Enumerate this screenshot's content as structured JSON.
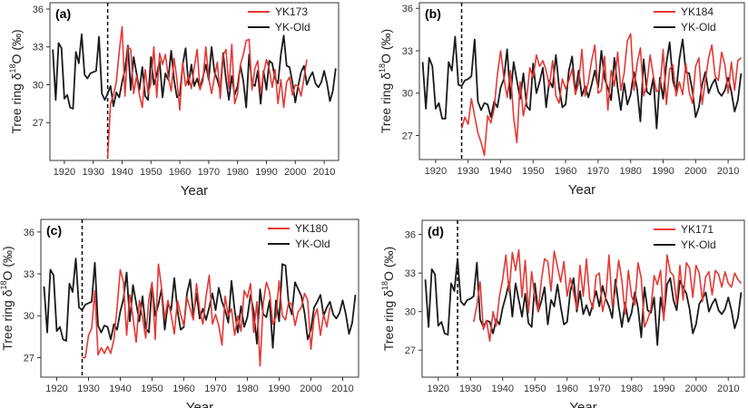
{
  "colors": {
    "red": "#e53935",
    "black": "#1a1a1a",
    "frame": "#333333",
    "ref_line": "#000000"
  },
  "chart_data": [
    {
      "type": "line",
      "panel_label": "(a)",
      "xlabel": "Year",
      "ylabel_main": "Tree ring δ",
      "ylabel_sup": "18",
      "ylabel_tail": "O (‰)",
      "xlim": [
        1915,
        2015
      ],
      "ylim": [
        24,
        36.5
      ],
      "xticks": [
        1920,
        1930,
        1940,
        1950,
        1960,
        1970,
        1980,
        1990,
        2000,
        2010
      ],
      "yticks": [
        27,
        30,
        33,
        36
      ],
      "ref_year": 1935,
      "legend": {
        "position": "top-right"
      },
      "series": [
        {
          "name": "YK173",
          "color": "#e53935",
          "x_start": 1935,
          "values": [
            24.2,
            28.5,
            29.2,
            30.2,
            32.6,
            34.6,
            29.1,
            33.0,
            32.8,
            29.3,
            30.7,
            29.2,
            28.2,
            31.2,
            29.3,
            30.1,
            33.0,
            29.0,
            32.5,
            31.6,
            32.4,
            30.6,
            29.5,
            32.1,
            30.4,
            28.0,
            31.8,
            29.9,
            30.7,
            29.7,
            31.4,
            32.8,
            29.6,
            30.3,
            33.0,
            30.5,
            29.3,
            30.6,
            31.8,
            28.9,
            32.3,
            32.8,
            29.7,
            33.2,
            28.5,
            29.3,
            31.6,
            32.4,
            33.5,
            33.6,
            29.6,
            31.3,
            31.9,
            29.3,
            30.9,
            32.0,
            31.2,
            29.8,
            31.2,
            28.5,
            30.4,
            28.2,
            30.2,
            30.6,
            29.2,
            30.0,
            29.9,
            29.1,
            30.5,
            32.0
          ]
        },
        {
          "name": "YK-Old",
          "color": "#1a1a1a",
          "x_start": 1916,
          "values": [
            32.8,
            28.8,
            33.3,
            32.9,
            28.9,
            29.2,
            28.2,
            28.1,
            32.6,
            31.7,
            34.0,
            30.8,
            30.5,
            30.9,
            31.0,
            31.1,
            33.8,
            29.3,
            28.8,
            29.3,
            29.9,
            28.3,
            29.4,
            29.0,
            30.2,
            31.2,
            33.1,
            29.6,
            32.2,
            30.9,
            29.6,
            31.4,
            29.1,
            28.8,
            32.2,
            30.0,
            30.8,
            31.9,
            29.0,
            30.9,
            30.4,
            32.7,
            30.4,
            29.0,
            29.2,
            31.6,
            32.9,
            30.0,
            31.6,
            29.9,
            30.5,
            29.7,
            30.6,
            31.6,
            30.4,
            33.0,
            31.0,
            30.4,
            29.5,
            32.5,
            30.4,
            28.8,
            30.7,
            29.2,
            29.9,
            31.5,
            30.3,
            28.2,
            32.4,
            30.1,
            29.9,
            31.1,
            28.5,
            31.1,
            29.6,
            31.9,
            31.7,
            30.5,
            30.1,
            32.4,
            33.9,
            31.5,
            31.4,
            30.2,
            28.6,
            29.9,
            31.0,
            31.5,
            30.0,
            30.6,
            31.0,
            30.1,
            29.8,
            30.2,
            31.1,
            30.1,
            28.7,
            29.5,
            31.3
          ]
        }
      ]
    },
    {
      "type": "line",
      "panel_label": "(b)",
      "xlabel": "Year",
      "ylabel_main": "Tree ring δ",
      "ylabel_sup": "18",
      "ylabel_tail": "O (‰)",
      "xlim": [
        1915,
        2015
      ],
      "ylim": [
        25.3,
        36.4
      ],
      "xticks": [
        1920,
        1930,
        1940,
        1950,
        1960,
        1970,
        1980,
        1990,
        2000,
        2010
      ],
      "yticks": [
        27,
        30,
        33,
        36
      ],
      "ref_year": 1928,
      "legend": {
        "position": "top-right"
      },
      "series": [
        {
          "name": "YK184",
          "color": "#e53935",
          "x_start": 1928,
          "values": [
            27.5,
            28.3,
            27.8,
            29.6,
            28.4,
            27.2,
            26.5,
            25.6,
            28.4,
            27.9,
            28.9,
            31.3,
            33.0,
            31.1,
            29.7,
            31.6,
            28.3,
            26.5,
            30.8,
            28.4,
            29.6,
            31.8,
            31.1,
            32.7,
            31.9,
            32.3,
            31.6,
            30.5,
            32.3,
            29.8,
            29.3,
            31.0,
            30.3,
            30.9,
            31.7,
            29.9,
            30.7,
            33.1,
            29.8,
            30.8,
            32.3,
            33.4,
            30.0,
            30.2,
            32.6,
            28.8,
            31.6,
            30.5,
            32.9,
            30.2,
            31.4,
            33.7,
            34.2,
            30.2,
            32.1,
            33.2,
            29.8,
            30.6,
            32.7,
            31.2,
            30.1,
            30.3,
            33.1,
            29.2,
            31.7,
            32.0,
            29.8,
            30.8,
            29.9,
            32.1,
            30.1,
            29.3,
            31.9,
            32.5,
            29.2,
            30.9,
            32.5,
            33.4,
            31.2,
            30.9,
            32.9,
            32.0,
            30.0,
            32.2,
            30.2,
            32.3,
            32.5
          ]
        },
        {
          "name": "YK-Old",
          "color": "#1a1a1a",
          "x_start": 1916,
          "values": [
            32.2,
            28.9,
            32.5,
            31.9,
            28.9,
            29.3,
            28.2,
            28.2,
            32.2,
            31.6,
            34.0,
            30.6,
            30.5,
            30.9,
            31.0,
            31.2,
            33.8,
            29.4,
            28.8,
            29.3,
            29.2,
            28.3,
            29.4,
            29.0,
            30.4,
            31.0,
            33.1,
            29.6,
            32.2,
            30.9,
            29.6,
            31.4,
            29.1,
            28.8,
            32.1,
            30.0,
            30.8,
            31.8,
            29.0,
            30.9,
            30.4,
            32.7,
            30.4,
            29.0,
            29.2,
            31.6,
            32.6,
            30.0,
            31.6,
            29.8,
            30.5,
            29.7,
            30.6,
            31.6,
            30.4,
            33.0,
            31.0,
            30.4,
            29.5,
            32.5,
            30.4,
            28.8,
            30.7,
            29.2,
            29.9,
            31.5,
            30.3,
            28.0,
            32.4,
            30.1,
            29.9,
            31.1,
            27.5,
            31.1,
            29.6,
            32.1,
            33.6,
            30.9,
            30.1,
            32.4,
            33.8,
            31.5,
            31.4,
            30.2,
            28.3,
            29.0,
            30.6,
            31.5,
            30.0,
            30.6,
            31.0,
            30.1,
            29.8,
            30.2,
            31.1,
            30.1,
            28.7,
            29.5,
            31.4
          ]
        }
      ]
    },
    {
      "type": "line",
      "panel_label": "(c)",
      "xlabel": "Year",
      "ylabel_main": "Tree ring δ",
      "ylabel_sup": "18",
      "ylabel_tail": "O (‰)",
      "xlim": [
        1915,
        2015
      ],
      "ylim": [
        25.6,
        36.9
      ],
      "xticks": [
        1920,
        1930,
        1940,
        1950,
        1960,
        1970,
        1980,
        1990,
        2000,
        2010
      ],
      "yticks": [
        27,
        30,
        33,
        36
      ],
      "ref_year": 1928,
      "legend": {
        "position": "top-right"
      },
      "series": [
        {
          "name": "YK180",
          "color": "#e53935",
          "x_start": 1928,
          "values": [
            27.0,
            27.0,
            28.6,
            29.1,
            31.8,
            27.2,
            27.7,
            27.3,
            27.8,
            27.3,
            28.3,
            30.6,
            33.3,
            32.4,
            28.6,
            31.5,
            29.9,
            28.1,
            31.1,
            29.9,
            28.4,
            31.2,
            32.4,
            28.3,
            33.7,
            32.0,
            29.8,
            31.1,
            30.1,
            28.7,
            31.1,
            30.1,
            29.3,
            31.3,
            30.5,
            29.7,
            32.3,
            30.4,
            29.4,
            31.4,
            32.9,
            29.4,
            30.1,
            29.3,
            27.9,
            31.4,
            30.0,
            30.5,
            28.6,
            30.0,
            28.9,
            31.8,
            31.3,
            32.3,
            28.8,
            31.0,
            26.4,
            30.9,
            32.4,
            31.7,
            29.4,
            29.9,
            32.5,
            30.0,
            29.7,
            31.0,
            30.8,
            29.3,
            30.3,
            30.6,
            31.6,
            31.1,
            27.6,
            29.9,
            30.5,
            28.6,
            30.1,
            29.2,
            30.6
          ]
        },
        {
          "name": "YK-Old",
          "color": "#1a1a1a",
          "x_start": 1916,
          "values": [
            32.1,
            28.8,
            33.3,
            32.9,
            28.9,
            29.2,
            28.3,
            28.2,
            32.3,
            31.7,
            34.1,
            30.6,
            30.4,
            30.8,
            30.9,
            31.0,
            33.8,
            29.3,
            28.8,
            29.3,
            29.2,
            28.3,
            29.4,
            29.0,
            30.3,
            31.2,
            33.1,
            29.6,
            32.2,
            30.9,
            29.6,
            31.4,
            29.1,
            28.8,
            32.2,
            30.0,
            30.8,
            31.9,
            29.0,
            30.9,
            30.4,
            32.7,
            30.4,
            29.0,
            29.2,
            31.6,
            32.6,
            30.0,
            31.6,
            29.8,
            30.5,
            29.7,
            30.6,
            31.6,
            30.4,
            32.0,
            31.0,
            30.4,
            29.5,
            32.5,
            30.4,
            28.8,
            30.7,
            29.2,
            29.9,
            31.5,
            30.3,
            28.0,
            31.9,
            30.1,
            29.9,
            31.1,
            27.7,
            31.1,
            29.6,
            33.7,
            33.6,
            30.9,
            30.1,
            32.4,
            31.9,
            31.4,
            30.2,
            28.3,
            29.0,
            30.6,
            31.0,
            31.5,
            30.0,
            30.6,
            31.0,
            30.1,
            29.8,
            30.2,
            31.1,
            30.1,
            28.7,
            29.5,
            31.5
          ]
        }
      ]
    },
    {
      "type": "line",
      "panel_label": "(d)",
      "xlabel": "Year",
      "ylabel_main": "Tree ring δ",
      "ylabel_sup": "18",
      "ylabel_tail": "O (‰)",
      "xlim": [
        1915,
        2015
      ],
      "ylim": [
        24.9,
        37.1
      ],
      "xticks": [
        1920,
        1930,
        1940,
        1950,
        1960,
        1970,
        1980,
        1990,
        2000,
        2010
      ],
      "yticks": [
        27,
        30,
        33,
        36
      ],
      "ref_year": 1926,
      "legend": {
        "position": "top-right"
      },
      "series": [
        {
          "name": "YK171",
          "color": "#e53935",
          "x_start": 1931,
          "values": [
            29.2,
            30.5,
            32.3,
            28.6,
            29.3,
            27.7,
            30.0,
            28.9,
            31.2,
            32.5,
            34.4,
            31.5,
            34.6,
            33.2,
            34.8,
            31.1,
            34.0,
            29.9,
            33.1,
            31.1,
            30.0,
            32.4,
            34.1,
            33.9,
            31.6,
            34.7,
            33.5,
            32.3,
            33.9,
            31.2,
            32.6,
            31.5,
            30.2,
            33.6,
            31.2,
            34.1,
            31.0,
            30.2,
            32.8,
            33.0,
            30.0,
            31.1,
            34.4,
            30.4,
            31.6,
            34.0,
            32.4,
            29.8,
            33.2,
            31.2,
            30.5,
            33.8,
            32.6,
            28.8,
            29.4,
            30.2,
            32.8,
            32.1,
            33.2,
            29.3,
            34.4,
            33.1,
            32.8,
            30.6,
            33.6,
            30.9,
            33.8,
            33.4,
            31.1,
            33.6,
            33.0,
            30.8,
            32.7,
            33.1,
            31.3,
            33.2,
            32.9,
            31.9,
            33.1,
            32.2,
            31.9,
            33.0,
            32.5,
            32.2
          ]
        },
        {
          "name": "YK-Old",
          "color": "#1a1a1a",
          "x_start": 1916,
          "values": [
            32.5,
            28.8,
            33.3,
            32.9,
            28.9,
            29.2,
            28.3,
            28.2,
            32.2,
            31.6,
            34.1,
            30.8,
            30.5,
            30.9,
            31.0,
            31.2,
            33.8,
            29.4,
            28.8,
            29.3,
            29.2,
            28.3,
            29.4,
            29.0,
            30.3,
            31.2,
            32.3,
            29.6,
            32.2,
            30.9,
            29.6,
            31.4,
            29.1,
            28.8,
            32.2,
            30.0,
            30.8,
            31.9,
            29.0,
            30.9,
            30.4,
            32.1,
            30.4,
            29.0,
            29.2,
            31.6,
            32.6,
            30.0,
            31.6,
            29.8,
            30.5,
            29.7,
            30.6,
            31.6,
            30.4,
            32.0,
            31.0,
            30.4,
            29.5,
            32.5,
            30.4,
            28.8,
            30.7,
            29.2,
            29.9,
            31.5,
            30.3,
            28.0,
            31.9,
            30.1,
            29.9,
            31.1,
            27.4,
            31.1,
            29.6,
            32.1,
            32.6,
            30.9,
            30.1,
            32.4,
            31.9,
            31.4,
            30.2,
            28.3,
            29.0,
            30.6,
            31.0,
            31.5,
            30.0,
            30.6,
            31.0,
            30.1,
            29.8,
            30.2,
            31.1,
            30.1,
            28.7,
            29.5,
            31.5
          ]
        }
      ]
    }
  ]
}
